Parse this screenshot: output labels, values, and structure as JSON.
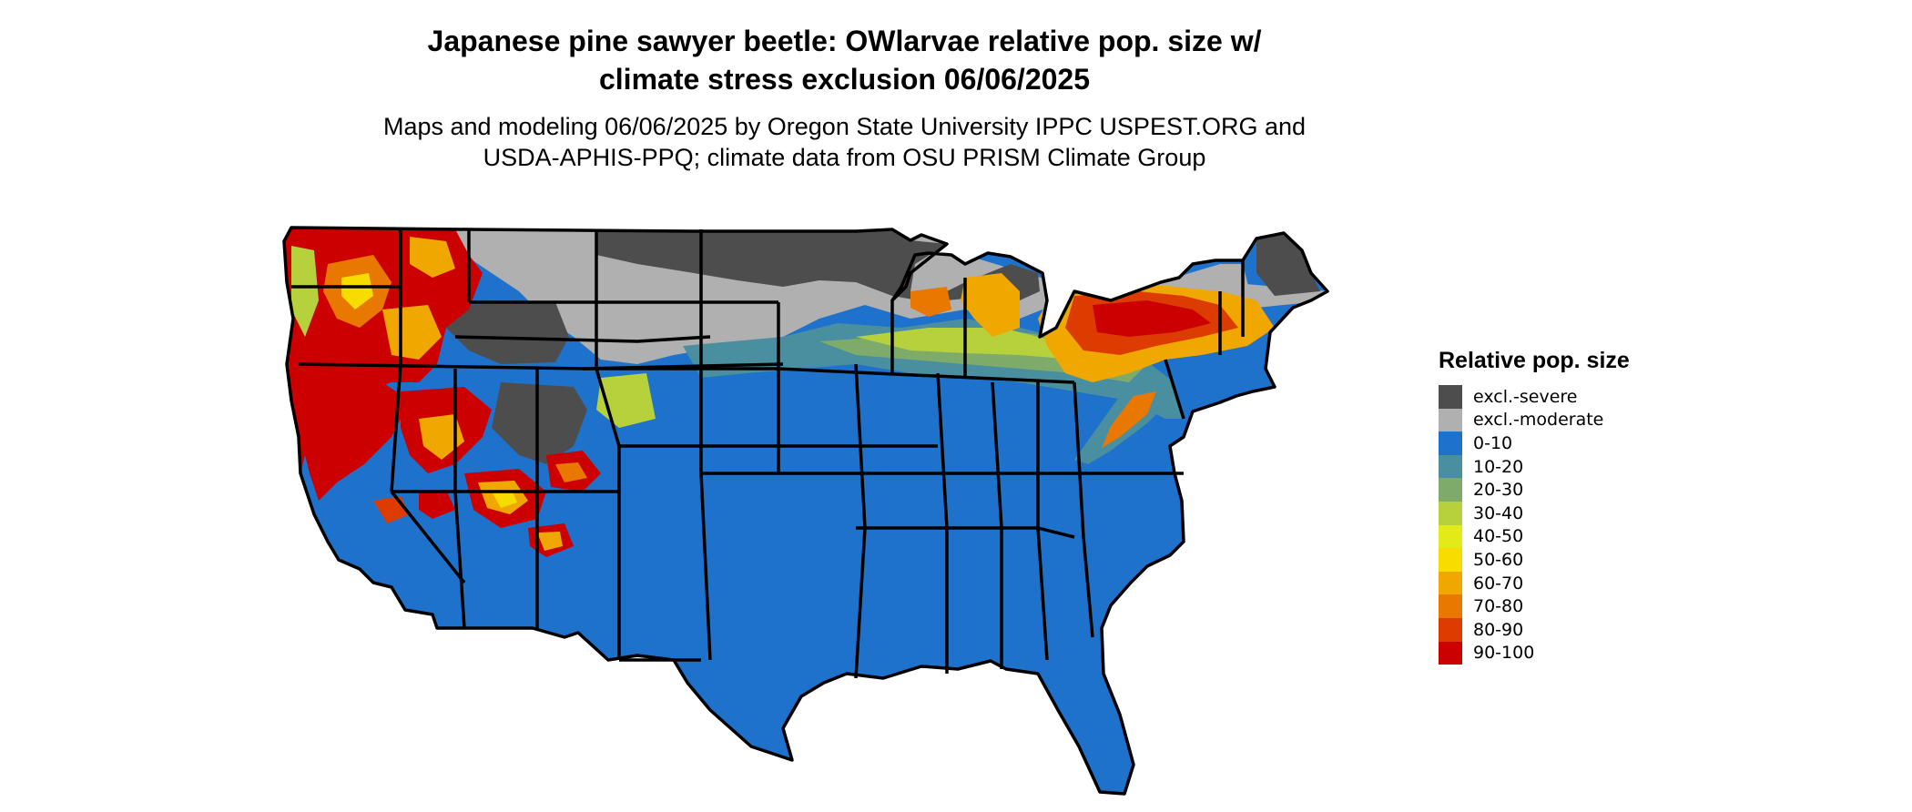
{
  "title_lines": [
    "Japanese pine sawyer beetle: OWlarvae relative pop. size w/",
    "climate stress exclusion 06/06/2025"
  ],
  "subtitle_lines": [
    "Maps and modeling 06/06/2025 by Oregon State University IPPC USPEST.ORG and",
    "USDA-APHIS-PPQ; climate data from OSU PRISM Climate Group"
  ],
  "legend": {
    "title": "Relative pop. size",
    "items": [
      {
        "label": "excl.-severe",
        "color": "#4d4d4d"
      },
      {
        "label": "excl.-moderate",
        "color": "#b0b0b0"
      },
      {
        "label": "0-10",
        "color": "#1f72cc"
      },
      {
        "label": "10-20",
        "color": "#4a8fa0"
      },
      {
        "label": "20-30",
        "color": "#7fab6a"
      },
      {
        "label": "30-40",
        "color": "#b6d13c"
      },
      {
        "label": "40-50",
        "color": "#e2ea18"
      },
      {
        "label": "50-60",
        "color": "#f7dc00"
      },
      {
        "label": "60-70",
        "color": "#f0a800"
      },
      {
        "label": "70-80",
        "color": "#e87800"
      },
      {
        "label": "80-90",
        "color": "#dc3c00"
      },
      {
        "label": "90-100",
        "color": "#cc0000"
      }
    ]
  },
  "map": {
    "region": "Contiguous United States",
    "colors": {
      "ocean": "#ffffff",
      "borders": "#000000"
    }
  }
}
